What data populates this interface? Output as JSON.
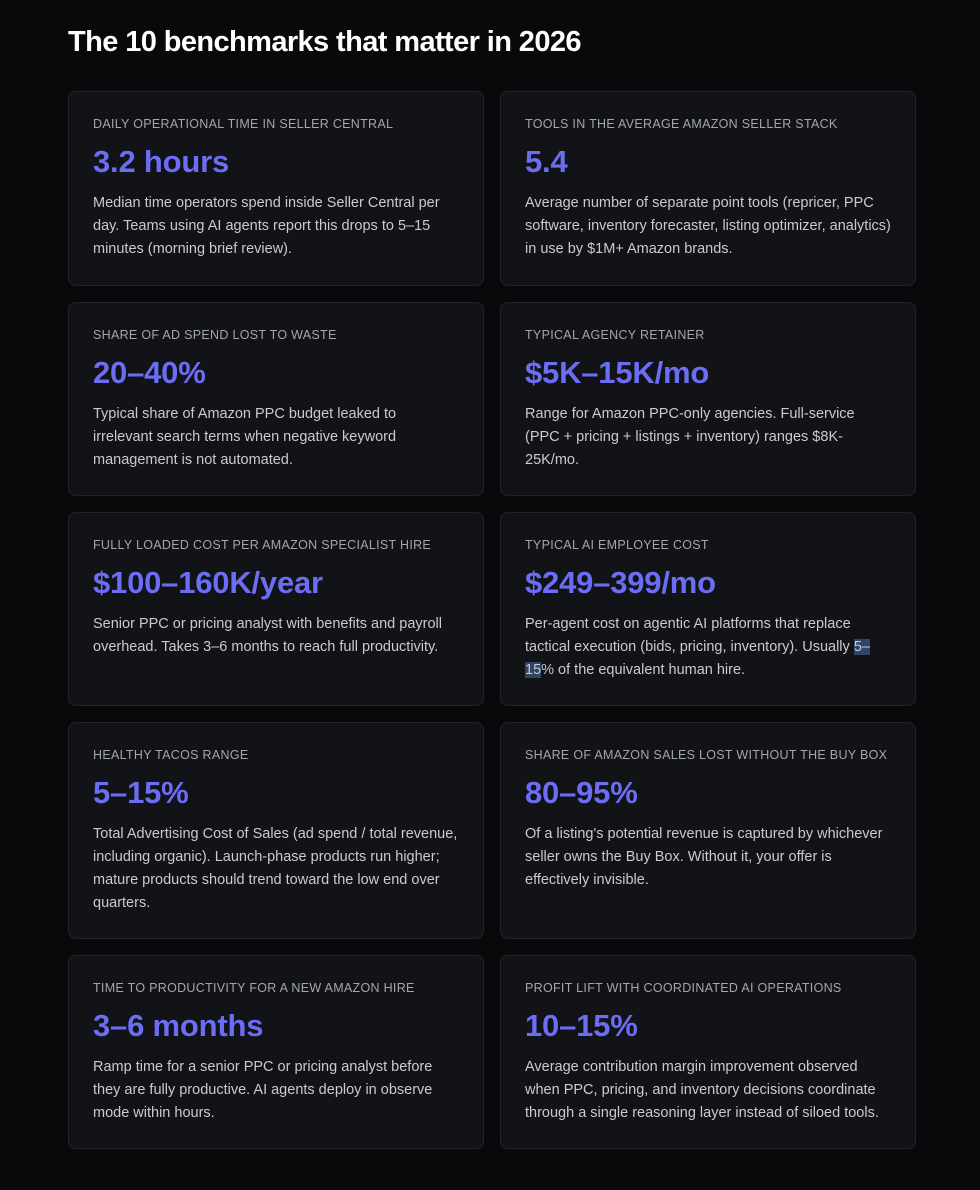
{
  "page": {
    "title": "The 10 benchmarks that matter in 2026"
  },
  "colors": {
    "background": "#09090b",
    "card": "#121316",
    "card_border": "#23252a",
    "accent": "#6b6ef5",
    "label": "#a3a6ad",
    "text": "#c9cbd0"
  },
  "cards": [
    {
      "label": "DAILY OPERATIONAL TIME IN SELLER CENTRAL",
      "value": "3.2 hours",
      "description": "Median time operators spend inside Seller Central per day. Teams using AI agents report this drops to 5–15 minutes (morning brief review)."
    },
    {
      "label": "TOOLS IN THE AVERAGE AMAZON SELLER STACK",
      "value": "5.4",
      "description": "Average number of separate point tools (repricer, PPC software, inventory forecaster, listing optimizer, analytics) in use by $1M+ Amazon brands."
    },
    {
      "label": "SHARE OF AD SPEND LOST TO WASTE",
      "value": "20–40%",
      "description": "Typical share of Amazon PPC budget leaked to irrelevant search terms when negative keyword management is not automated."
    },
    {
      "label": "TYPICAL AGENCY RETAINER",
      "value": "$5K–15K/mo",
      "description": "Range for Amazon PPC-only agencies. Full-service (PPC + pricing + listings + inventory) ranges $8K-25K/mo."
    },
    {
      "label": "FULLY LOADED COST PER AMAZON SPECIALIST HIRE",
      "value": "$100–160K/year",
      "description": "Senior PPC or pricing analyst with benefits and payroll overhead. Takes 3–6 months to reach full productivity."
    },
    {
      "label": "TYPICAL AI EMPLOYEE COST",
      "value": "$249–399/mo",
      "description_before": "Per-agent cost on agentic AI platforms that replace tactical execution (bids, pricing, inventory). Usually ",
      "description_highlight": "5–15",
      "description_after": "% of the equivalent human hire."
    },
    {
      "label": "HEALTHY TACOS RANGE",
      "value": "5–15%",
      "description": "Total Advertising Cost of Sales (ad spend / total revenue, including organic). Launch-phase products run higher; mature products should trend toward the low end over quarters."
    },
    {
      "label": "SHARE OF AMAZON SALES LOST WITHOUT THE BUY BOX",
      "value": "80–95%",
      "description": "Of a listing's potential revenue is captured by whichever seller owns the Buy Box. Without it, your offer is effectively invisible."
    },
    {
      "label": "TIME TO PRODUCTIVITY FOR A NEW AMAZON HIRE",
      "value": "3–6 months",
      "description": "Ramp time for a senior PPC or pricing analyst before they are fully productive. AI agents deploy in observe mode within hours."
    },
    {
      "label": "PROFIT LIFT WITH COORDINATED AI OPERATIONS",
      "value": "10–15%",
      "description": "Average contribution margin improvement observed when PPC, pricing, and inventory decisions coordinate through a single reasoning layer instead of siloed tools."
    }
  ]
}
